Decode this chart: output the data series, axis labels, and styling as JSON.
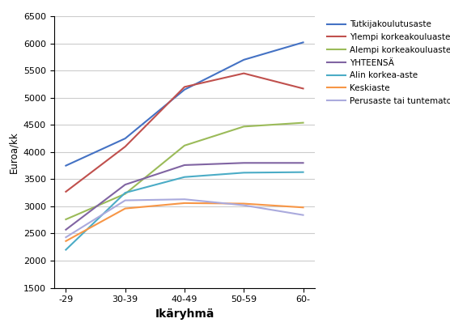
{
  "categories": [
    "-29",
    "30-39",
    "40-49",
    "50-59",
    "60-"
  ],
  "series": [
    {
      "label": "Tutkijakoulutusaste",
      "color": "#4472C4",
      "values": [
        3750,
        4250,
        5150,
        5700,
        6020
      ]
    },
    {
      "label": "Ylempi korkeakouluaste",
      "color": "#C0504D",
      "values": [
        3270,
        4100,
        5200,
        5450,
        5170
      ]
    },
    {
      "label": "Alempi korkeakouluaste",
      "color": "#9BBB59",
      "values": [
        2760,
        3230,
        4120,
        4470,
        4540
      ]
    },
    {
      "label": "YHTEENSÄ",
      "color": "#8064A2",
      "values": [
        2570,
        3400,
        3760,
        3800,
        3800
      ]
    },
    {
      "label": "Alin korkea-aste",
      "color": "#4BACC6",
      "values": [
        2200,
        3250,
        3540,
        3620,
        3630
      ]
    },
    {
      "label": "Keskiaste",
      "color": "#F79646",
      "values": [
        2360,
        2960,
        3060,
        3050,
        2980
      ]
    },
    {
      "label": "Perusaste tai tuntematon",
      "color": "#AAAADD",
      "values": [
        2430,
        3110,
        3130,
        3020,
        2840
      ]
    }
  ],
  "xlabel": "Ikäryhmä",
  "ylabel": "Euroa/kk",
  "ylim": [
    1500,
    6500
  ],
  "yticks": [
    1500,
    2000,
    2500,
    3000,
    3500,
    4000,
    4500,
    5000,
    5500,
    6000,
    6500
  ],
  "background_color": "#FFFFFF",
  "legend_fontsize": 7.5,
  "axis_fontsize": 8,
  "xlabel_fontsize": 10,
  "ylabel_fontsize": 8.5
}
